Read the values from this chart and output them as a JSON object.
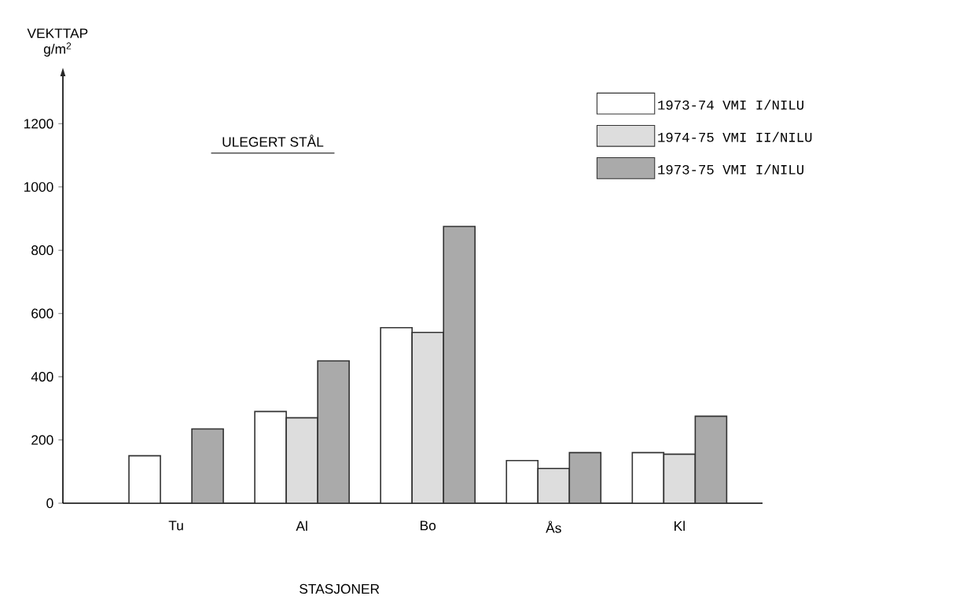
{
  "chart_data": {
    "type": "bar",
    "title": "ULEGERT STÅL",
    "xlabel": "STASJONER",
    "ylabel": "VEKTTAP g/m$^{2}$",
    "categories": [
      "Tu",
      "Al",
      "Bo",
      "Ås",
      "Kl"
    ],
    "series": [
      {
        "name": "1973-74  VMI  I/NILU",
        "color": "#ffffff",
        "values": [
          150,
          290,
          555,
          135,
          160
        ]
      },
      {
        "name": "1974-75  VMI  II/NILU",
        "color": "#dddddd",
        "values": [
          null,
          270,
          540,
          110,
          155
        ]
      },
      {
        "name": "1973-75  VMI  I/NILU",
        "color": "#aaaaaa",
        "values": [
          235,
          450,
          875,
          160,
          275
        ]
      }
    ],
    "ylim": [
      0,
      1350
    ],
    "yticks": [
      0,
      200,
      400,
      600,
      800,
      1000,
      1200
    ],
    "legend": "top right"
  }
}
